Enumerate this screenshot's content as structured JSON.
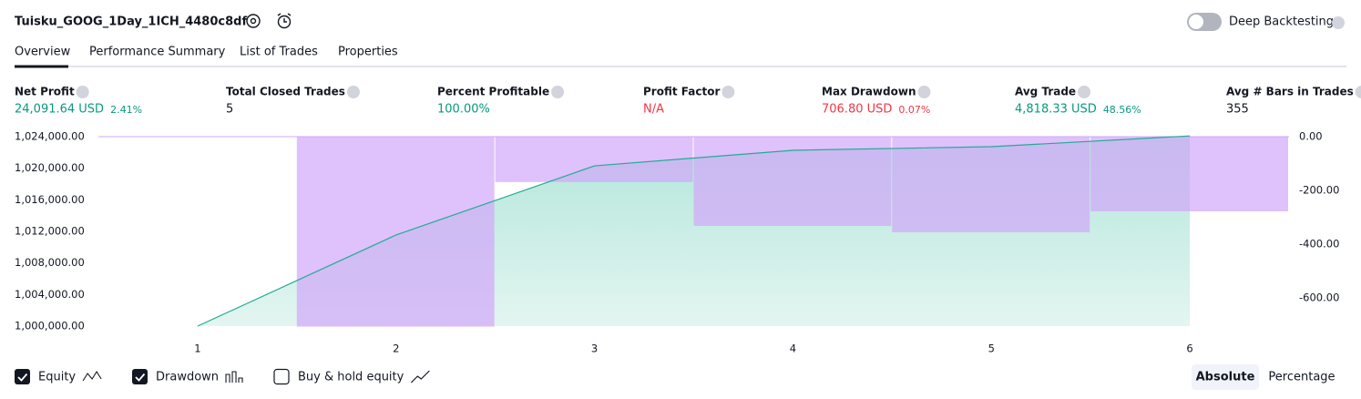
{
  "header": {
    "title": "Tuisku_GOOG_1Day_1ICH_4480c8df",
    "toggle_label": "Deep Backtesting"
  },
  "tabs": [
    "Overview",
    "Performance Summary",
    "List of Trades",
    "Properties"
  ],
  "metrics": [
    {
      "label": "Net Profit",
      "value": "24,091.64 USD",
      "sub": "2.41%",
      "color": "#089981"
    },
    {
      "label": "Total Closed Trades",
      "value": "5",
      "color": "#131722"
    },
    {
      "label": "Percent Profitable",
      "value": "100.00%",
      "color": "#089981"
    },
    {
      "label": "Profit Factor",
      "value": "N/A",
      "color": "#f23645"
    },
    {
      "label": "Max Drawdown",
      "value": "706.80 USD",
      "sub": "0.07%",
      "color": "#f23645"
    },
    {
      "label": "Avg Trade",
      "value": "4,818.33 USD",
      "sub": "48.56%",
      "color": "#089981"
    },
    {
      "label": "Avg # Bars in Trades",
      "value": "355",
      "color": "#131722"
    }
  ],
  "chart_data": {
    "type": "line",
    "x": [
      1,
      2,
      3,
      4,
      5,
      6
    ],
    "xlim": [
      0.5,
      6.5
    ],
    "xticks": [
      1,
      2,
      3,
      4,
      5,
      6
    ],
    "ylim": [
      1000000,
      1024000
    ],
    "yticks": [
      {
        "value": 1000000,
        "label": "1,000,000.00"
      },
      {
        "value": 1004000,
        "label": "1,004,000.00"
      },
      {
        "value": 1008000,
        "label": "1,008,000.00"
      },
      {
        "value": 1012000,
        "label": "1,012,000.00"
      },
      {
        "value": 1016000,
        "label": "1,016,000.00"
      },
      {
        "value": 1020000,
        "label": "1,020,000.00"
      },
      {
        "value": 1024000,
        "label": "1,024,000.00"
      }
    ],
    "y2lim": [
      -705,
      0
    ],
    "y2ticks": [
      {
        "value": 0,
        "label": "0.00"
      },
      {
        "value": -200,
        "label": "-200.00"
      },
      {
        "value": -400,
        "label": "-400.00"
      },
      {
        "value": -600,
        "label": "-600.00"
      }
    ],
    "series": [
      {
        "name": "Equity",
        "type": "line",
        "color": "#22ab94",
        "values": [
          1000000,
          1011540,
          1020300,
          1022270,
          1022730,
          1024091.64
        ]
      },
      {
        "name": "Drawdown",
        "type": "bar",
        "axis": "y2",
        "color": "#d1a6fa",
        "values": [
          null,
          -706.8,
          -169,
          -332,
          -356,
          -278
        ]
      }
    ]
  },
  "legend_extra": "Buy & hold equity",
  "scale_buttons": [
    "Absolute",
    "Percentage"
  ]
}
